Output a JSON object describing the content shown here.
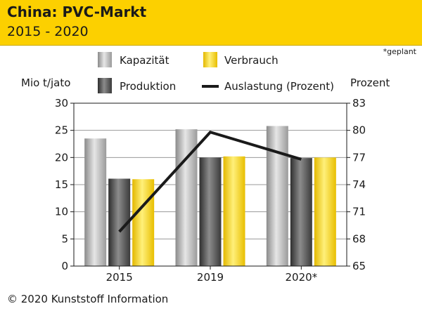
{
  "header": {
    "title": "China: PVC-Markt",
    "subtitle": "2015 - 2020"
  },
  "note": "*geplant",
  "footer": "© 2020 Kunststoff Information",
  "colors": {
    "header_bg": "#fcd000",
    "kapazitaet": "#bdbdbd",
    "produktion": "#5a5a5a",
    "verbrauch": "#f7d21c",
    "auslastung": "#1a1a1a"
  },
  "chart_data": {
    "type": "bar",
    "categories": [
      "2015",
      "2019",
      "2020*"
    ],
    "series": [
      {
        "name": "Kapazität",
        "values": [
          23.5,
          25.2,
          25.8
        ]
      },
      {
        "name": "Produktion",
        "values": [
          16.1,
          20.0,
          19.9
        ]
      },
      {
        "name": "Verbrauch",
        "values": [
          16.0,
          20.2,
          20.0
        ]
      }
    ],
    "line_series": {
      "name": "Auslastung (Prozent)",
      "axis": "right",
      "values": [
        68.8,
        79.8,
        76.8
      ]
    },
    "ylabel_left": "Mio t/jato",
    "ylabel_right": "Prozent",
    "ylim_left": [
      0,
      30
    ],
    "yticks_left": [
      0,
      5,
      10,
      15,
      20,
      25,
      30
    ],
    "ylim_right": [
      65,
      83
    ],
    "yticks_right": [
      65,
      68,
      71,
      74,
      77,
      80,
      83
    ],
    "grid": true,
    "legend_position": "top"
  }
}
